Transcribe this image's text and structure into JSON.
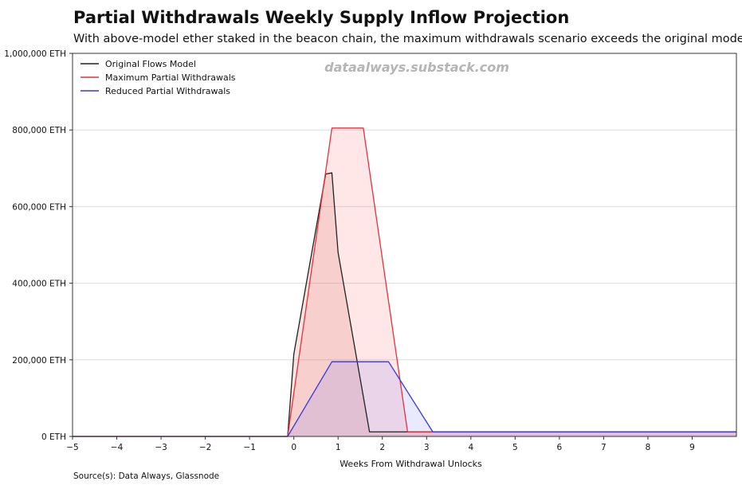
{
  "title": "Partial Withdrawals Weekly Supply Inflow Projection",
  "subtitle": "With above-model ether staked in the beacon chain, the maximum withdrawals scenario exceeds the original model.",
  "source": "Source(s): Data Always, Glassnode",
  "watermark": "dataalways.substack.com",
  "chart_data": {
    "type": "area",
    "xlabel": "Weeks From Withdrawal Unlocks",
    "ylabel": "",
    "xlim": [
      -5,
      10
    ],
    "ylim": [
      0,
      1000000
    ],
    "grid": "horizontal",
    "legend_position": "top-left",
    "x_ticks": [
      -5,
      -4,
      -3,
      -2,
      -1,
      0,
      1,
      2,
      3,
      4,
      5,
      6,
      7,
      8,
      9
    ],
    "x_tick_labels": [
      "−5",
      "−4",
      "−3",
      "−2",
      "−1",
      "0",
      "1",
      "2",
      "3",
      "4",
      "5",
      "6",
      "7",
      "8",
      "9"
    ],
    "y_ticks": [
      0,
      200000,
      400000,
      600000,
      800000,
      1000000
    ],
    "y_tick_labels": [
      "0 ETH",
      "200,000 ETH",
      "400,000 ETH",
      "600,000 ETH",
      "800,000 ETH",
      "1,000,000 ETH"
    ],
    "series": [
      {
        "name": "Original Flows Model",
        "color": "#222222",
        "fill": "#c0392b",
        "fill_opacity": 0.14,
        "points": [
          [
            -5,
            0
          ],
          [
            -0.14,
            0
          ],
          [
            0,
            215000
          ],
          [
            0.72,
            685000
          ],
          [
            0.86,
            688000
          ],
          [
            1,
            480000
          ],
          [
            1.71,
            12000
          ],
          [
            10,
            12000
          ]
        ]
      },
      {
        "name": "Maximum Partial Withdrawals",
        "color": "#e8303a",
        "fill": "#ff6b6b",
        "fill_opacity": 0.16,
        "points": [
          [
            -5,
            0
          ],
          [
            -0.14,
            0
          ],
          [
            0.86,
            805000
          ],
          [
            1.57,
            805000
          ],
          [
            2.57,
            12000
          ],
          [
            10,
            12000
          ]
        ]
      },
      {
        "name": "Reduced Partial Withdrawals",
        "color": "#3535e8",
        "fill": "#6a6aff",
        "fill_opacity": 0.15,
        "points": [
          [
            -5,
            0
          ],
          [
            -0.14,
            0
          ],
          [
            0.86,
            195000
          ],
          [
            2.14,
            195000
          ],
          [
            3.14,
            12000
          ],
          [
            10,
            12000
          ]
        ]
      }
    ]
  }
}
